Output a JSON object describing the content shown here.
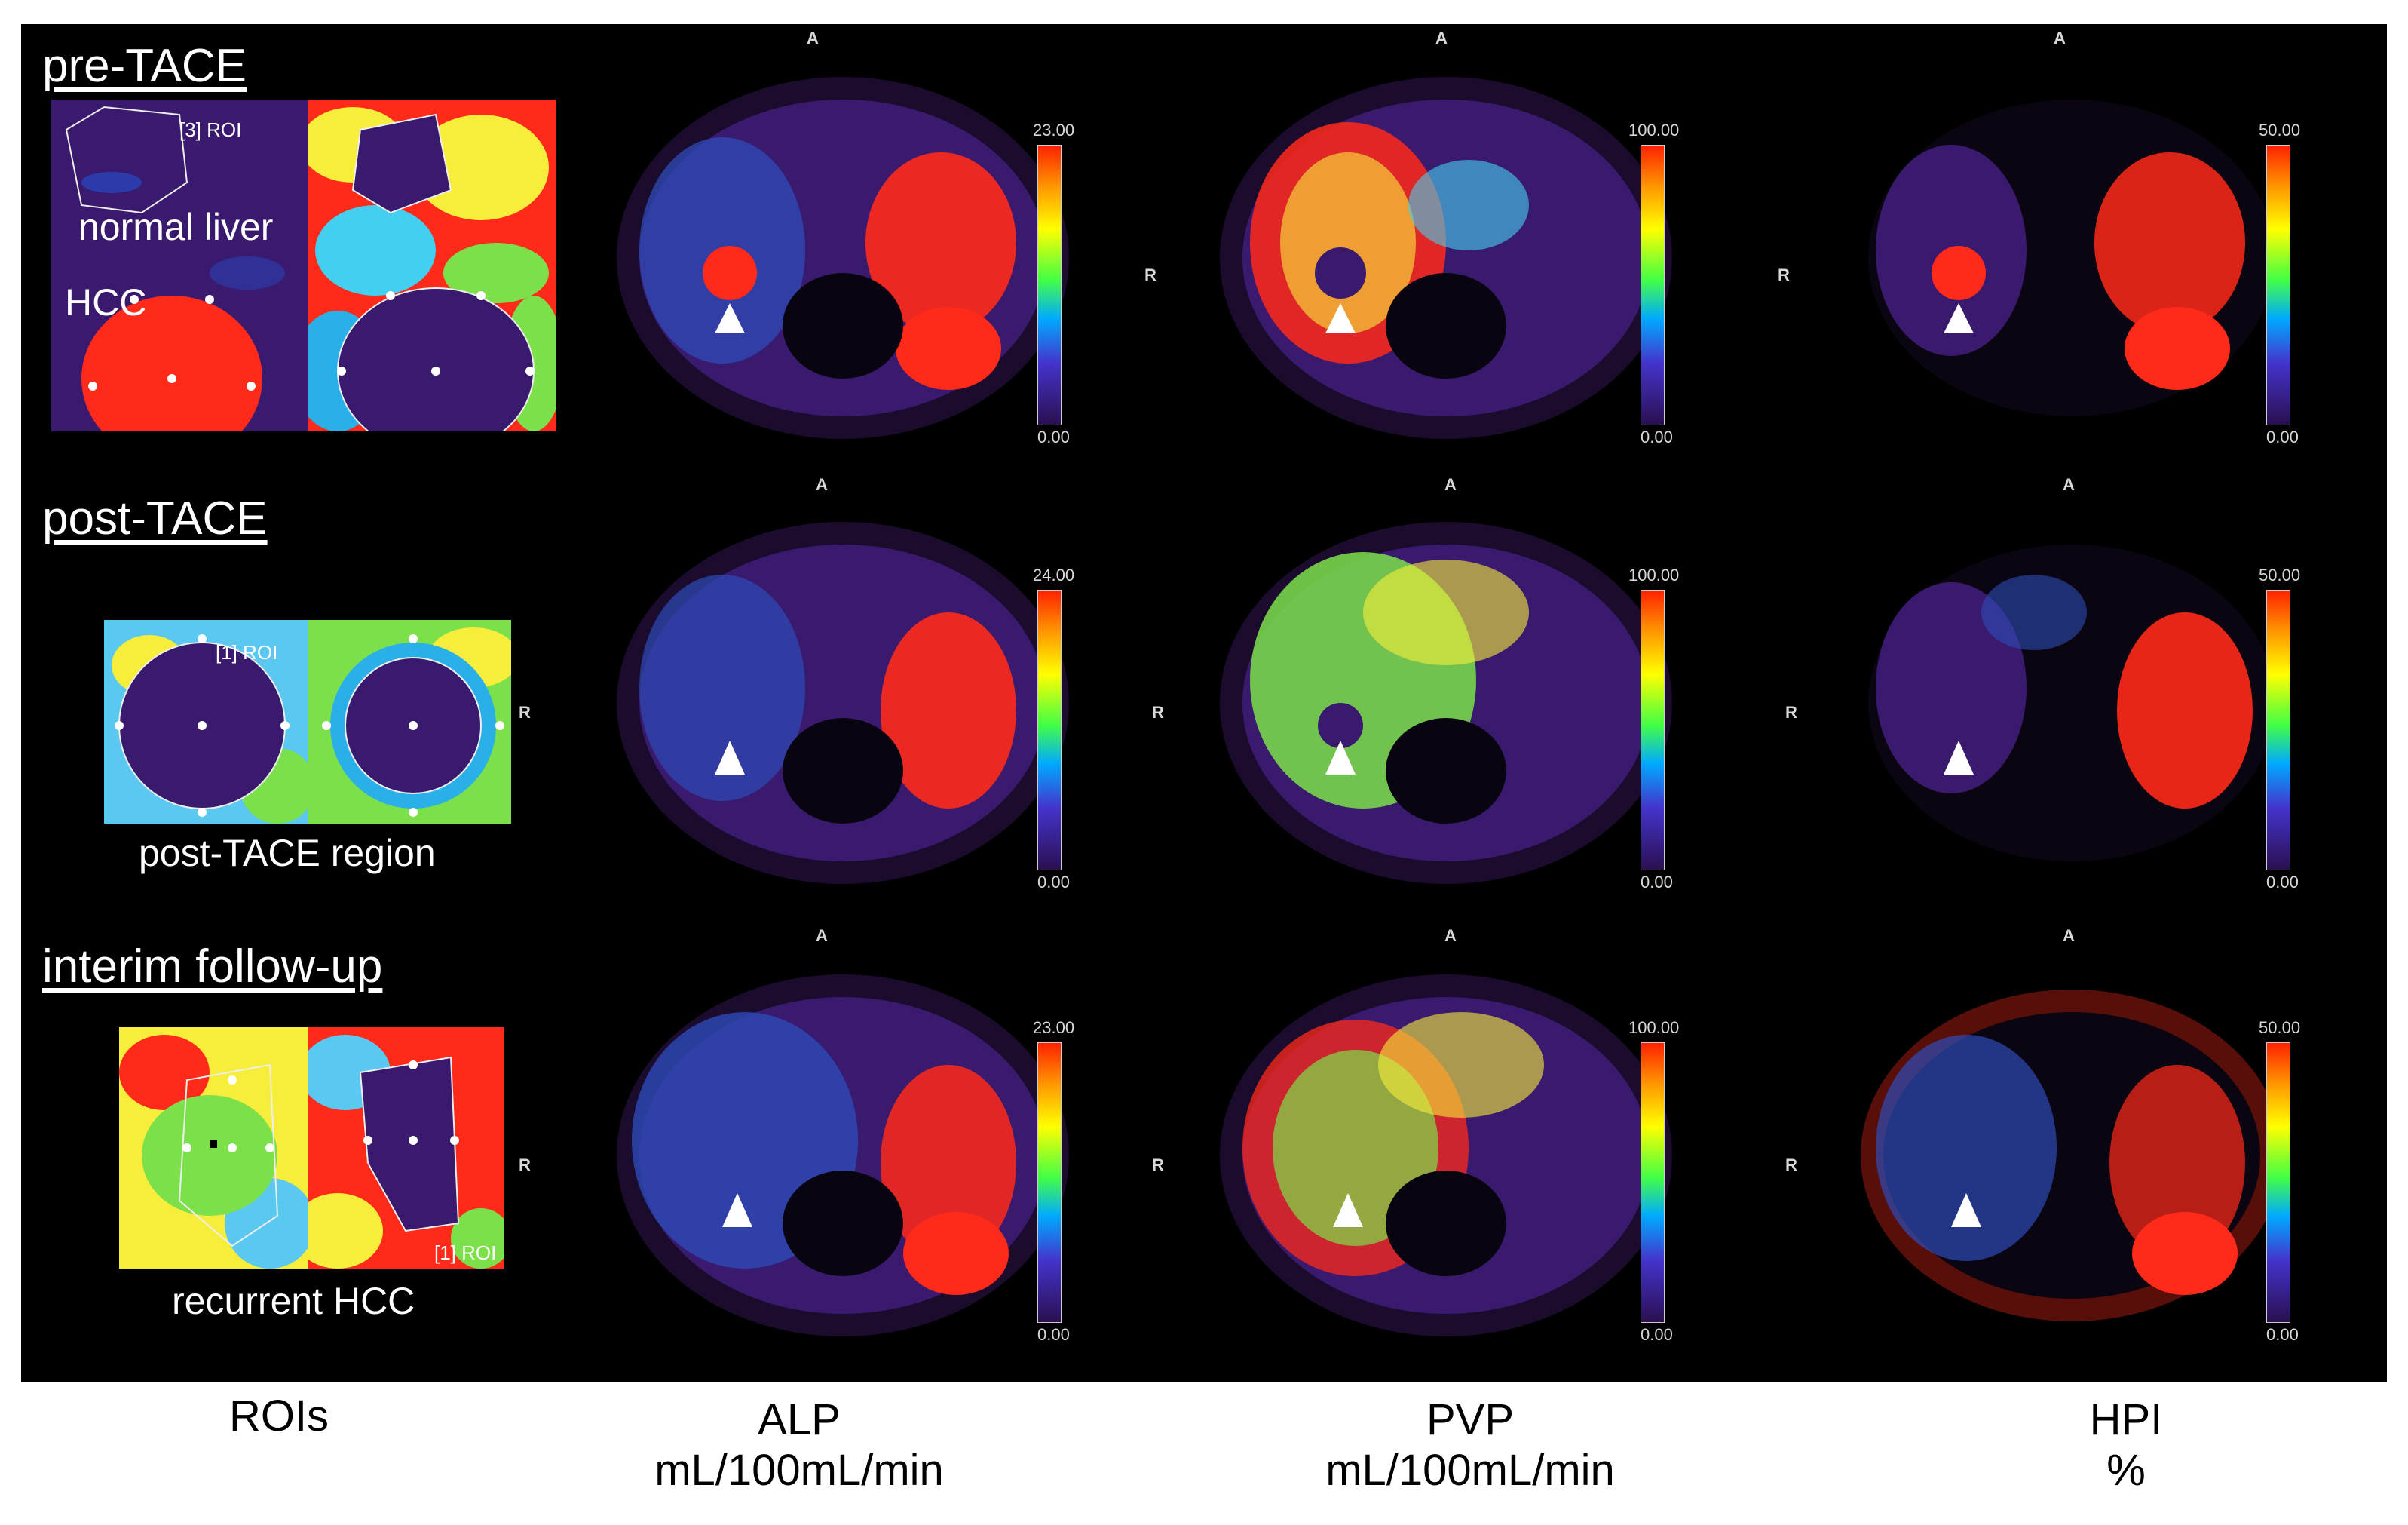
{
  "rows": [
    {
      "title": "pre-TACE",
      "alp_max": "23.00",
      "pvp_max": "100.00",
      "hpi_max": "50.00",
      "min": "0.00",
      "roi_labels": [
        "normal liver",
        "HCC"
      ],
      "roi_tags": [
        "[3] ROI"
      ]
    },
    {
      "title": "post-TACE",
      "alp_max": "24.00",
      "pvp_max": "100.00",
      "hpi_max": "50.00",
      "min": "0.00",
      "roi_labels": [
        "post-TACE region"
      ],
      "roi_tags": [
        "[1] ROI"
      ]
    },
    {
      "title": "interim follow-up",
      "alp_max": "23.00",
      "pvp_max": "100.00",
      "hpi_max": "50.00",
      "min": "0.00",
      "roi_labels": [
        "recurrent HCC"
      ],
      "roi_tags": [
        "[1] ROI"
      ]
    }
  ],
  "orientation": {
    "anterior": "A",
    "right": "R"
  },
  "columns": [
    {
      "name": "ROIs",
      "unit": ""
    },
    {
      "name": "ALP",
      "unit": "mL/100mL/min"
    },
    {
      "name": "PVP",
      "unit": "mL/100mL/min"
    },
    {
      "name": "HPI",
      "unit": "%"
    }
  ],
  "colors": {
    "background": "#000000",
    "label": "#ffffff",
    "tumor": "#ff2a1a",
    "tissue": "#3a1a6e"
  }
}
